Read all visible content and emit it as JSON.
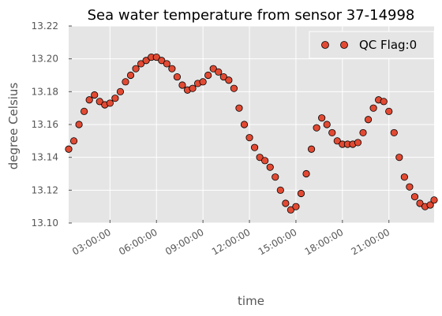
{
  "chart_data": {
    "type": "scatter",
    "title": "Sea water temperature from sensor 37-14998",
    "xlabel": "time",
    "ylabel": "degree Celsius",
    "xlim": [
      "00:20:00",
      "23:55:00"
    ],
    "ylim": [
      13.1,
      13.22
    ],
    "x_ticks": [
      "03:00:00",
      "06:00:00",
      "09:00:00",
      "12:00:00",
      "15:00:00",
      "18:00:00",
      "21:00:00"
    ],
    "y_ticks": [
      "13.10",
      "13.12",
      "13.14",
      "13.16",
      "13.18",
      "13.20",
      "13.22"
    ],
    "grid": true,
    "legend_position": "top-right",
    "series": [
      {
        "name": "QC Flag:0",
        "marker_color": "#e24a33",
        "edge_color": "#000000",
        "points": [
          [
            "00:20:00",
            13.145
          ],
          [
            "00:40:00",
            13.15
          ],
          [
            "01:00:00",
            13.16
          ],
          [
            "01:20:00",
            13.168
          ],
          [
            "01:40:00",
            13.175
          ],
          [
            "02:00:00",
            13.178
          ],
          [
            "02:20:00",
            13.174
          ],
          [
            "02:40:00",
            13.172
          ],
          [
            "03:00:00",
            13.173
          ],
          [
            "03:20:00",
            13.176
          ],
          [
            "03:40:00",
            13.18
          ],
          [
            "04:00:00",
            13.186
          ],
          [
            "04:20:00",
            13.19
          ],
          [
            "04:40:00",
            13.194
          ],
          [
            "05:00:00",
            13.197
          ],
          [
            "05:20:00",
            13.199
          ],
          [
            "05:40:00",
            13.201
          ],
          [
            "06:00:00",
            13.201
          ],
          [
            "06:20:00",
            13.199
          ],
          [
            "06:40:00",
            13.197
          ],
          [
            "07:00:00",
            13.194
          ],
          [
            "07:20:00",
            13.189
          ],
          [
            "07:40:00",
            13.184
          ],
          [
            "08:00:00",
            13.181
          ],
          [
            "08:20:00",
            13.182
          ],
          [
            "08:40:00",
            13.185
          ],
          [
            "09:00:00",
            13.186
          ],
          [
            "09:20:00",
            13.19
          ],
          [
            "09:40:00",
            13.194
          ],
          [
            "10:00:00",
            13.192
          ],
          [
            "10:20:00",
            13.189
          ],
          [
            "10:40:00",
            13.187
          ],
          [
            "11:00:00",
            13.182
          ],
          [
            "11:20:00",
            13.17
          ],
          [
            "11:40:00",
            13.16
          ],
          [
            "12:00:00",
            13.152
          ],
          [
            "12:20:00",
            13.146
          ],
          [
            "12:40:00",
            13.14
          ],
          [
            "13:00:00",
            13.138
          ],
          [
            "13:20:00",
            13.134
          ],
          [
            "13:40:00",
            13.128
          ],
          [
            "14:00:00",
            13.12
          ],
          [
            "14:20:00",
            13.112
          ],
          [
            "14:40:00",
            13.108
          ],
          [
            "15:00:00",
            13.11
          ],
          [
            "15:20:00",
            13.118
          ],
          [
            "15:40:00",
            13.13
          ],
          [
            "16:00:00",
            13.145
          ],
          [
            "16:20:00",
            13.158
          ],
          [
            "16:40:00",
            13.164
          ],
          [
            "17:00:00",
            13.16
          ],
          [
            "17:20:00",
            13.155
          ],
          [
            "17:40:00",
            13.15
          ],
          [
            "18:00:00",
            13.148
          ],
          [
            "18:20:00",
            13.148
          ],
          [
            "18:40:00",
            13.148
          ],
          [
            "19:00:00",
            13.149
          ],
          [
            "19:20:00",
            13.155
          ],
          [
            "19:40:00",
            13.163
          ],
          [
            "20:00:00",
            13.17
          ],
          [
            "20:20:00",
            13.175
          ],
          [
            "20:40:00",
            13.174
          ],
          [
            "21:00:00",
            13.168
          ],
          [
            "21:20:00",
            13.155
          ],
          [
            "21:40:00",
            13.14
          ],
          [
            "22:00:00",
            13.128
          ],
          [
            "22:20:00",
            13.122
          ],
          [
            "22:40:00",
            13.116
          ],
          [
            "23:00:00",
            13.112
          ],
          [
            "23:20:00",
            13.11
          ],
          [
            "23:40:00",
            13.111
          ],
          [
            "23:55:00",
            13.114
          ]
        ]
      }
    ]
  },
  "colors": {
    "plot_background": "#e5e5e5",
    "grid": "#ffffff"
  }
}
